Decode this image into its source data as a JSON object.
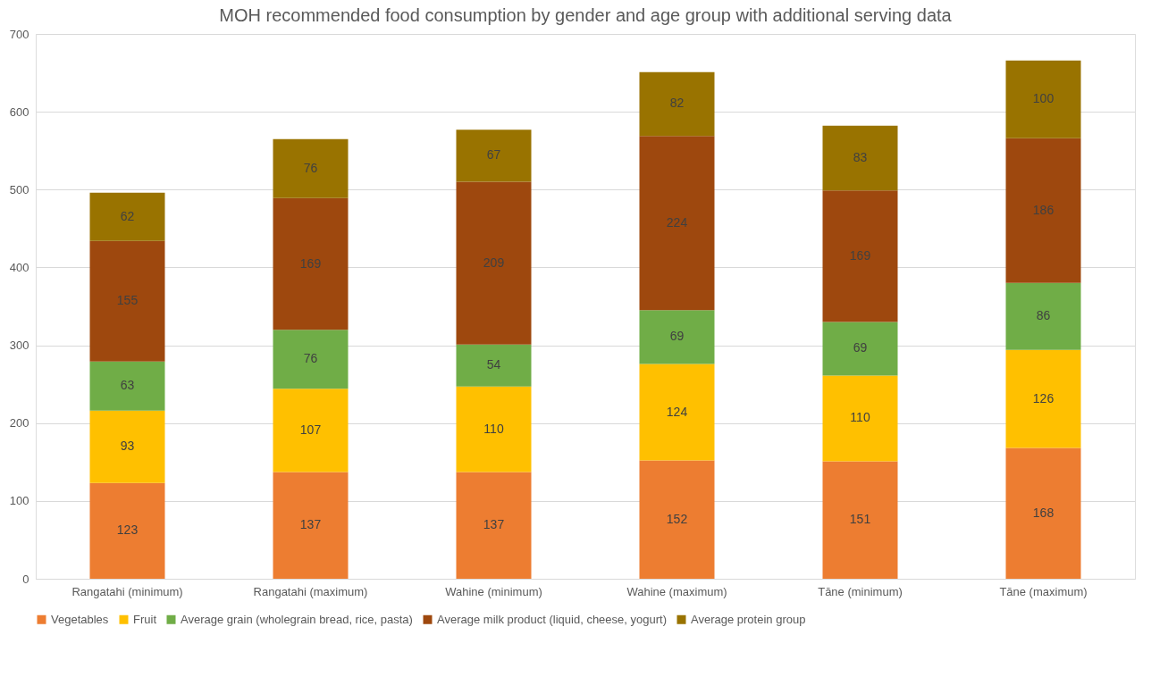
{
  "chart_data": {
    "type": "bar",
    "title": "MOH recommended food consumption by gender and age group with additional serving data",
    "categories": [
      "Rangatahi (minimum)",
      "Rangatahi (maximum)",
      "Wahine (minimum)",
      "Wahine (maximum)",
      "Tāne (minimum)",
      "Tāne (maximum)"
    ],
    "series": [
      {
        "name": "Vegetables",
        "color": "#ed7d31",
        "values": [
          123,
          137,
          137,
          152,
          151,
          168
        ]
      },
      {
        "name": "Fruit",
        "color": "#ffc000",
        "values": [
          93,
          107,
          110,
          124,
          110,
          126
        ]
      },
      {
        "name": "Average grain (wholegrain bread, rice, pasta)",
        "color": "#70ad47",
        "values": [
          63,
          76,
          54,
          69,
          69,
          86
        ]
      },
      {
        "name": "Average milk product (liquid, cheese, yogurt)",
        "color": "#9e480e",
        "values": [
          155,
          169,
          209,
          224,
          169,
          186
        ]
      },
      {
        "name": "Average protein group",
        "color": "#997300",
        "values": [
          62,
          76,
          67,
          82,
          83,
          100
        ]
      }
    ],
    "stacked": true,
    "data_labels": true,
    "ylim": [
      0,
      700
    ],
    "yticks": [
      0,
      100,
      200,
      300,
      400,
      500,
      600,
      700
    ],
    "grid": "y",
    "legend": "bottom"
  }
}
